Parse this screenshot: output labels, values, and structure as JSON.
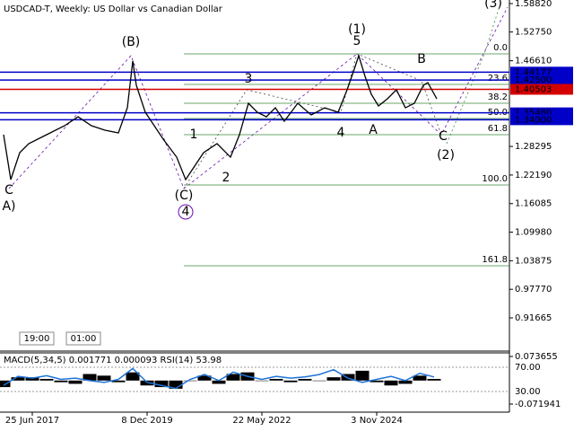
{
  "chart_data": [
    {
      "type": "line",
      "title": "USDCAD-T, Weekly:  US Dollar vs Canadian Dollar",
      "x": [
        2,
        10,
        20,
        30,
        50,
        70,
        85,
        100,
        115,
        130,
        140,
        146,
        150,
        160,
        170,
        180,
        195,
        205,
        215,
        225,
        240,
        255,
        265,
        275,
        285,
        295,
        305,
        315,
        330,
        345,
        360,
        375,
        385,
        392,
        398,
        405,
        412,
        420,
        430,
        440,
        450,
        460,
        470,
        475,
        485
      ],
      "series": [
        {
          "name": "USDCAD-T",
          "color": "#000000",
          "values": [
            1.3081,
            1.2121,
            1.2697,
            1.2889,
            1.3081,
            1.3273,
            1.3464,
            1.3273,
            1.3177,
            1.3119,
            1.3656,
            1.4654,
            1.4136,
            1.356,
            1.3273,
            1.2985,
            1.2601,
            1.2121,
            1.2409,
            1.2697,
            1.2889,
            1.2601,
            1.3081,
            1.3752,
            1.356,
            1.3464,
            1.3656,
            1.3369,
            1.3752,
            1.3503,
            1.3656,
            1.356,
            1.404,
            1.4424,
            1.4769,
            1.4328,
            1.3944,
            1.3695,
            1.3848,
            1.404,
            1.3656,
            1.3752,
            1.4136,
            1.4194,
            1.3848
          ]
        }
      ],
      "xlim": [
        -2,
        566
      ],
      "xticks": [
        {
          "value": 34,
          "label": "25 Jun 2017"
        },
        {
          "value": 162,
          "label": "8 Dec 2019"
        },
        {
          "value": 290,
          "label": "22 May 2022"
        },
        {
          "value": 418,
          "label": "3 Nov 2024"
        }
      ],
      "ylim": [
        0.8476,
        1.5959
      ],
      "yticks": [
        {
          "value": 1.5882,
          "label": "1.58820"
        },
        {
          "value": 1.5275,
          "label": "1.52750"
        },
        {
          "value": 1.4661,
          "label": "1.46610"
        },
        {
          "value": 1.28295,
          "label": "1.28295"
        },
        {
          "value": 1.2219,
          "label": "1.22190"
        },
        {
          "value": 1.16085,
          "label": "1.16085"
        },
        {
          "value": 1.0998,
          "label": "1.09980"
        },
        {
          "value": 1.03875,
          "label": "1.03875"
        },
        {
          "value": 0.9777,
          "label": "0.97770"
        },
        {
          "value": 0.91665,
          "label": "0.91665"
        }
      ],
      "levels": [
        {
          "value": 1.44177,
          "label": "1.44177",
          "color": "#0000c8"
        },
        {
          "value": 1.425,
          "label": "1.42500",
          "color": "#0000c8"
        },
        {
          "value": 1.40503,
          "label": "1.40503",
          "color": "#d40000"
        },
        {
          "value": 1.3548,
          "label": "1.35480",
          "color": "#0000c8"
        },
        {
          "value": 1.34,
          "label": "1.34000",
          "color": "#0000c8"
        }
      ],
      "fibonacci": [
        {
          "value": 1.4808,
          "label": "0.0"
        },
        {
          "value": 1.4155,
          "label": "23.6"
        },
        {
          "value": 1.3752,
          "label": "38.2"
        },
        {
          "value": 1.3426,
          "label": "50.0"
        },
        {
          "value": 1.3081,
          "label": "61.8"
        },
        {
          "value": 1.2006,
          "label": "100.0"
        },
        {
          "value": 1.028,
          "label": "161.8"
        }
      ],
      "fib_color": "#3a8a3a",
      "annotations": [
        {
          "text": "(B)",
          "color": "#2e8b2e"
        },
        {
          "text": "(1)",
          "color": "#2e8b2e"
        },
        {
          "text": "(3)",
          "color": "#2e8b2e"
        },
        {
          "text": "5",
          "color": "#b22222"
        },
        {
          "text": "B",
          "color": "#b22222"
        },
        {
          "text": "3",
          "color": "#b22222"
        },
        {
          "text": "1",
          "color": "#b22222"
        },
        {
          "text": "2",
          "color": "#b22222"
        },
        {
          "text": "4",
          "color": "#b22222"
        },
        {
          "text": "A",
          "color": "#b22222"
        },
        {
          "text": "C",
          "color": "#b22222"
        },
        {
          "text": "C",
          "color": "#b22222"
        },
        {
          "text": "A)",
          "color": "#2e8b2e"
        },
        {
          "text": "(C)",
          "color": "#2e8b2e"
        },
        {
          "text": "4",
          "color": "#6a0dad"
        },
        {
          "text": "(2)",
          "color": "#2e8b2e"
        }
      ],
      "time_labels": [
        "19:00",
        "01:00"
      ]
    },
    {
      "type": "indicator",
      "title": "MACD(5,34,5) 0.001771 0.000093 RSI(14) 53.98",
      "x": [
        2,
        18,
        34,
        50,
        66,
        82,
        98,
        114,
        130,
        146,
        162,
        178,
        194,
        210,
        226,
        242,
        258,
        274,
        290,
        306,
        322,
        338,
        354,
        370,
        386,
        402,
        418,
        434,
        450,
        466,
        482
      ],
      "series": [
        {
          "name": "MACD",
          "color": "#000000",
          "values": [
            -0.02,
            0.01,
            0.01,
            0.005,
            -0.005,
            -0.01,
            0.02,
            0.015,
            -0.005,
            0.025,
            -0.015,
            -0.02,
            -0.025,
            0.0,
            0.015,
            -0.01,
            0.02,
            0.025,
            0.0,
            0.005,
            -0.005,
            0.005,
            0.0,
            0.01,
            0.02,
            0.03,
            -0.005,
            -0.015,
            -0.01,
            0.015,
            0.005
          ]
        },
        {
          "name": "RSI",
          "color": "#1e73d8",
          "axis": "y2",
          "values": [
            40,
            55,
            52,
            56,
            50,
            52,
            48,
            45,
            50,
            68,
            45,
            40,
            35,
            50,
            58,
            48,
            62,
            55,
            50,
            55,
            52,
            54,
            58,
            66,
            52,
            45,
            50,
            55,
            48,
            60,
            54
          ]
        }
      ],
      "ylim": [
        -0.09392,
        0.08464
      ],
      "yticks": [
        {
          "value": 0.073655,
          "label": "0.073655"
        },
        {
          "value": -0.071941,
          "label": "-0.071941"
        }
      ],
      "y2lim": [
        -2.6,
        93.7
      ],
      "y2ticks": [
        {
          "value": 70,
          "label": "70.00"
        },
        {
          "value": 30,
          "label": "30.00"
        }
      ]
    }
  ]
}
